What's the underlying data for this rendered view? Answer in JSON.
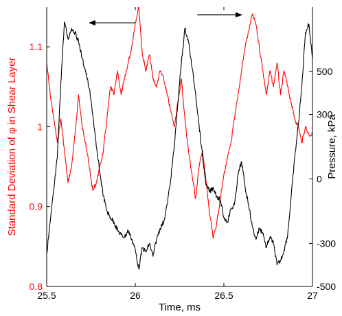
{
  "chart_data": {
    "type": "line",
    "title": "",
    "xlabel": "Time, ms",
    "ylabel_left": "Standard Deviation of φ in Shear Layer",
    "ylabel_right": "Pressure, kPa",
    "xlim": [
      25.5,
      27.0
    ],
    "ylim_left": [
      0.8,
      1.15
    ],
    "ylim_right": [
      -500,
      800
    ],
    "x_ticks": [
      "25.5",
      "26",
      "26.5",
      "27"
    ],
    "y_left_ticks": [
      "0.8",
      "0.9",
      "1",
      "1.1"
    ],
    "y_right_ticks": [
      "-500",
      "-300",
      "0",
      "300",
      "500"
    ],
    "colors": {
      "left_series": "#ff0000",
      "right_series": "#000000",
      "axes": "#000000"
    },
    "annotations": [
      {
        "type": "arrow",
        "from": [
          26.0,
          1.13
        ],
        "to": [
          25.74,
          1.13
        ],
        "axis": "left",
        "name": "arrow-to-pressure-axis"
      },
      {
        "type": "arrow",
        "from": [
          26.35,
          1.14
        ],
        "to": [
          26.6,
          1.14
        ],
        "axis": "left",
        "name": "arrow-to-deviation-axis"
      }
    ],
    "series": [
      {
        "axis": "left",
        "x": [
          25.5,
          25.52,
          25.54,
          25.56,
          25.58,
          25.6,
          25.62,
          25.64,
          25.66,
          25.68,
          25.7,
          25.72,
          25.74,
          25.76,
          25.78,
          25.8,
          25.82,
          25.84,
          25.86,
          25.88,
          25.9,
          25.92,
          25.94,
          25.96,
          25.98,
          26.0,
          26.02,
          26.04,
          26.06,
          26.08,
          26.1,
          26.12,
          26.14,
          26.16,
          26.18,
          26.2,
          26.22,
          26.24,
          26.26,
          26.28,
          26.3,
          26.32,
          26.34,
          26.36,
          26.38,
          26.4,
          26.42,
          26.44,
          26.46,
          26.48,
          26.5,
          26.52,
          26.54,
          26.56,
          26.58,
          26.6,
          26.62,
          26.64,
          26.66,
          26.68,
          26.7,
          26.72,
          26.74,
          26.76,
          26.78,
          26.8,
          26.82,
          26.84,
          26.86,
          26.88,
          26.9,
          26.92,
          26.94,
          26.96,
          26.98,
          27.0
        ],
        "values": [
          1.08,
          1.04,
          1.01,
          0.98,
          1.01,
          0.97,
          0.93,
          0.95,
          0.99,
          1.04,
          1.0,
          0.98,
          0.95,
          0.92,
          0.93,
          0.95,
          0.97,
          1.01,
          1.05,
          1.04,
          1.07,
          1.04,
          1.06,
          1.08,
          1.1,
          1.13,
          1.15,
          1.09,
          1.07,
          1.09,
          1.06,
          1.05,
          1.07,
          1.06,
          1.04,
          1.02,
          1.0,
          1.03,
          1.06,
          1.01,
          0.97,
          0.94,
          0.91,
          0.95,
          0.97,
          0.93,
          0.89,
          0.86,
          0.88,
          0.91,
          0.94,
          0.96,
          0.98,
          1.01,
          1.04,
          1.07,
          1.1,
          1.12,
          1.14,
          1.13,
          1.1,
          1.07,
          1.04,
          1.07,
          1.05,
          1.08,
          1.04,
          1.07,
          1.05,
          1.03,
          1.01,
          1.0,
          0.98,
          1.0,
          0.99,
          0.99
        ]
      },
      {
        "axis": "right",
        "x": [
          25.5,
          25.52,
          25.54,
          25.56,
          25.58,
          25.6,
          25.62,
          25.64,
          25.66,
          25.68,
          25.7,
          25.72,
          25.74,
          25.76,
          25.78,
          25.8,
          25.82,
          25.84,
          25.86,
          25.88,
          25.9,
          25.92,
          25.94,
          25.96,
          25.98,
          26.0,
          26.02,
          26.04,
          26.06,
          26.08,
          26.1,
          26.12,
          26.14,
          26.16,
          26.18,
          26.2,
          26.22,
          26.24,
          26.26,
          26.28,
          26.3,
          26.32,
          26.34,
          26.36,
          26.38,
          26.4,
          26.42,
          26.44,
          26.46,
          26.48,
          26.5,
          26.52,
          26.54,
          26.56,
          26.58,
          26.6,
          26.62,
          26.64,
          26.66,
          26.68,
          26.7,
          26.72,
          26.74,
          26.76,
          26.78,
          26.8,
          26.82,
          26.84,
          26.86,
          26.88,
          26.9,
          26.92,
          26.94,
          26.96,
          26.98,
          27.0
        ],
        "values": [
          -350,
          -200,
          -50,
          100,
          450,
          730,
          650,
          700,
          680,
          640,
          560,
          500,
          420,
          300,
          150,
          30,
          -80,
          -150,
          -180,
          -200,
          -240,
          -260,
          -270,
          -240,
          -280,
          -330,
          -420,
          -320,
          -340,
          -300,
          -360,
          -280,
          -230,
          -200,
          -120,
          0,
          150,
          350,
          540,
          700,
          640,
          520,
          400,
          250,
          100,
          -30,
          -60,
          -40,
          -80,
          -100,
          -180,
          -200,
          -140,
          -120,
          20,
          80,
          -40,
          -120,
          -220,
          -280,
          -230,
          -250,
          -320,
          -270,
          -300,
          -400,
          -380,
          -330,
          -260,
          -80,
          100,
          250,
          430,
          680,
          720,
          560
        ]
      }
    ]
  }
}
